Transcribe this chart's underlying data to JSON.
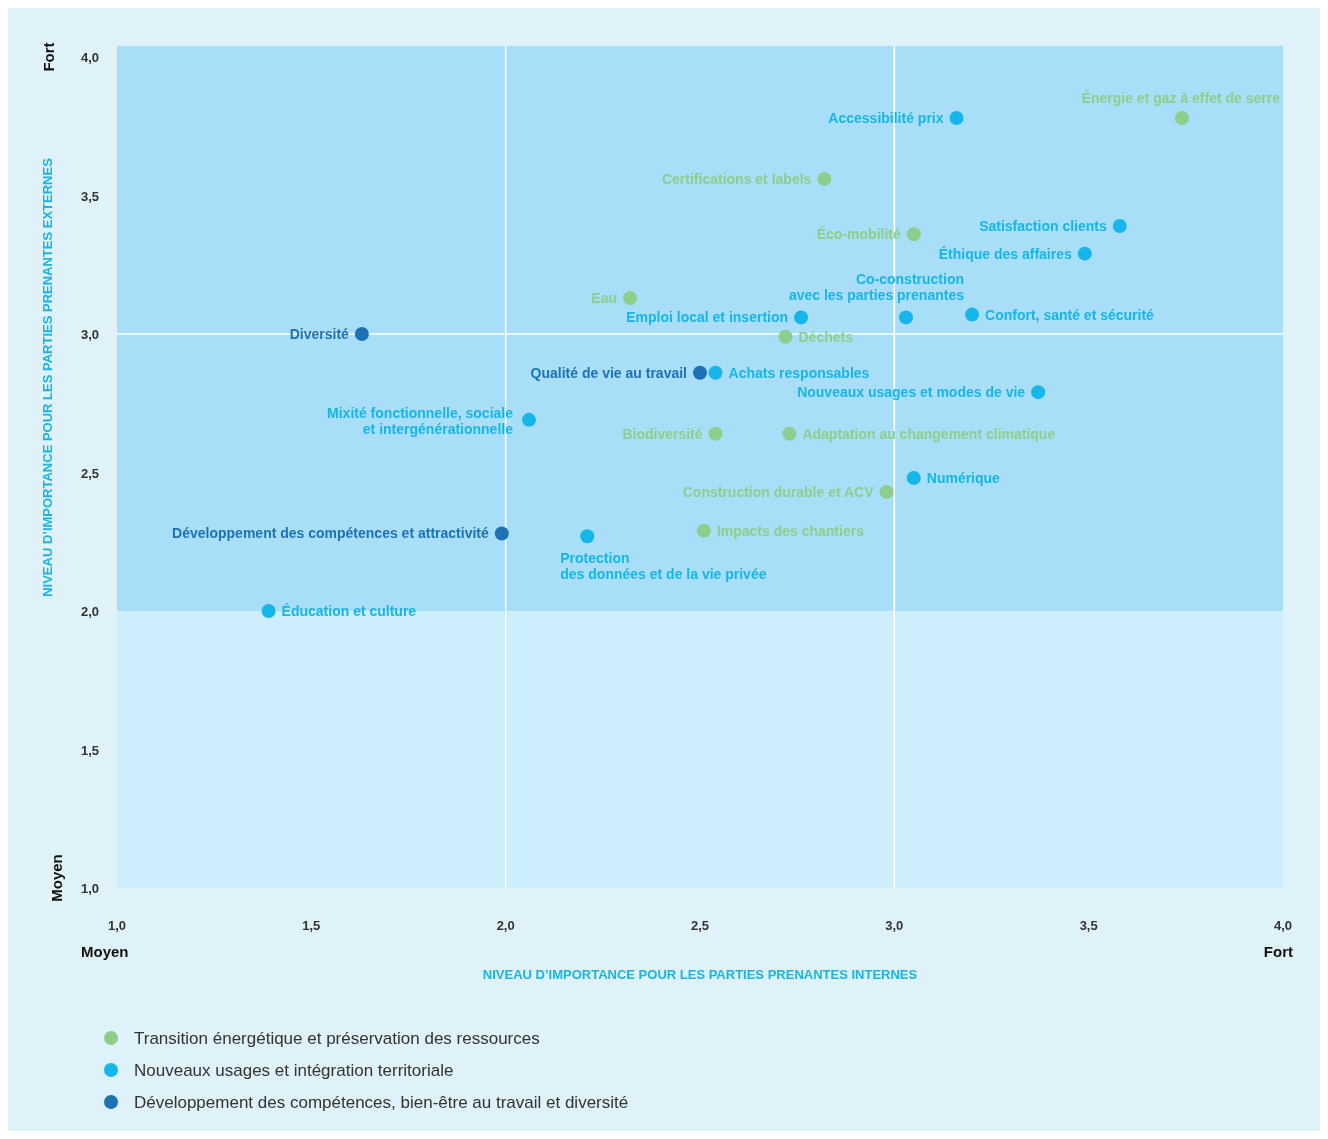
{
  "chart_data": {
    "type": "scatter",
    "xlabel": "NIVEAU D’IMPORTANCE POUR LES PARTIES PRENANTES INTERNES",
    "ylabel": "NIVEAU D’IMPORTANCE POUR LES PARTIES PRENANTES EXTERNES",
    "xlim": [
      1,
      4
    ],
    "ylim": [
      1,
      4.04
    ],
    "xticks": [
      {
        "value": 1,
        "label": "1,0"
      },
      {
        "value": 1.5,
        "label": "1,5"
      },
      {
        "value": 2,
        "label": "2,0"
      },
      {
        "value": 2.5,
        "label": "2,5"
      },
      {
        "value": 3,
        "label": "3,0"
      },
      {
        "value": 3.5,
        "label": "3,5"
      },
      {
        "value": 4,
        "label": "4,0"
      }
    ],
    "yticks": [
      {
        "value": 1,
        "label": "1,0"
      },
      {
        "value": 1.5,
        "label": "1,5"
      },
      {
        "value": 2,
        "label": "2,0"
      },
      {
        "value": 2.5,
        "label": "2,5"
      },
      {
        "value": 3,
        "label": "3,0"
      },
      {
        "value": 3.5,
        "label": "3,5"
      },
      {
        "value": 4,
        "label": "4,0"
      }
    ],
    "bands": [
      {
        "axis": "y",
        "from": 1,
        "to": 2,
        "color": "#cdeefb"
      },
      {
        "axis": "y",
        "from": 2,
        "to": 4.04,
        "color": "#a9def8"
      }
    ],
    "ref_lines": [
      {
        "axis": "x",
        "value": 2,
        "color": "#ffffff"
      },
      {
        "axis": "x",
        "value": 3,
        "color": "#ffffff"
      },
      {
        "axis": "y",
        "value": 3,
        "color": "#ffffff"
      }
    ],
    "annotations": [
      "Fort",
      "Moyen",
      "Moyen",
      "Fort"
    ],
    "legend": "bottom",
    "marker": "circle",
    "series": [
      {
        "name": "Transition énergétique et préservation des ressources",
        "color": "#8dcf8a",
        "x": [
          3.74,
          2.82,
          3.05,
          2.32,
          2.72,
          2.54,
          2.73,
          2.98,
          2.51
        ],
        "values": [
          3.78,
          3.56,
          3.36,
          3.13,
          2.99,
          2.64,
          2.64,
          2.43,
          2.29
        ],
        "value_labels": [
          "Énergie et gaz à effet de serre",
          "Certifications et labels",
          "Éco-mobilité",
          "Eau",
          "Déchets",
          "Biodiversité",
          "Adaptation au changement climatique",
          "Construction durable et ACV",
          "Impacts des chantiers"
        ]
      },
      {
        "name": "Nouveaux usages et intégration territoriale",
        "color": "#15b6ea",
        "x": [
          3.16,
          3.58,
          3.49,
          3.03,
          2.76,
          3.2,
          2.54,
          3.37,
          2.06,
          3.05,
          2.21,
          1.39
        ],
        "values": [
          3.78,
          3.39,
          3.29,
          3.06,
          3.06,
          3.07,
          2.86,
          2.79,
          2.69,
          2.48,
          2.27,
          2.0
        ],
        "value_labels": [
          "Accessibilité prix",
          "Satisfaction clients",
          "Éthique des affaires",
          "Co-construction\navec les parties prenantes",
          "Emploi local et insertion",
          "Confort, santé et sécurité",
          "Achats responsables",
          "Nouveaux usages et modes de vie",
          "Mixité fonctionnelle, sociale\net intergénérationnelle",
          "Numérique",
          "Protection\ndes données et de la vie privée",
          "Éducation et culture"
        ]
      },
      {
        "name": "Développement des compétences, bien-être au travail et diversité",
        "color": "#1d72b5",
        "x": [
          1.63,
          2.5,
          1.99
        ],
        "values": [
          3.0,
          2.86,
          2.28
        ],
        "value_labels": [
          "Diversité",
          "Qualité de vie au travail",
          "Développement des compétences et attractivité"
        ]
      }
    ]
  }
}
